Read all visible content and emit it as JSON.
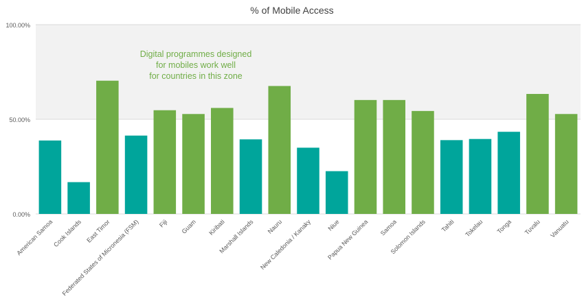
{
  "chart_data": {
    "type": "bar",
    "title": "% of Mobile Access",
    "xlabel": "",
    "ylabel": "",
    "ylim": [
      0,
      100
    ],
    "yticks": [
      0,
      50,
      100
    ],
    "ytick_labels": [
      "0.00%",
      "50.00%",
      "100.00%"
    ],
    "grid": true,
    "legend": "none",
    "categories": [
      "American Samoa",
      "Cook Islands",
      "East Timor",
      "Federated States of Micronesia (FSM)",
      "Fiji",
      "Guam",
      "Kiribati",
      "Marshall Islands",
      "Nauru",
      "New Caledonia / Kanaky",
      "Niue",
      "Papua New Guinea",
      "Samoa",
      "Solomon Islands",
      "Tahiti",
      "Tokelau",
      "Tonga",
      "Tuvalu",
      "Vanuatu"
    ],
    "values": [
      38.8,
      16.8,
      70.4,
      41.4,
      54.8,
      52.8,
      56.0,
      39.4,
      67.6,
      35.0,
      22.6,
      60.2,
      60.2,
      54.4,
      39.0,
      39.6,
      43.4,
      63.4,
      52.8
    ],
    "highlight": [
      false,
      false,
      true,
      false,
      true,
      true,
      true,
      false,
      true,
      false,
      false,
      true,
      true,
      true,
      false,
      false,
      false,
      true,
      true
    ],
    "zone": {
      "from": 50,
      "to": 100
    },
    "annotation_lines": [
      "Digital programmes designed",
      "for mobiles work well",
      "for countries in this zone"
    ],
    "colors": {
      "teal": "#00a59b",
      "green": "#70ad47",
      "zone": "#f2f2f2",
      "annotation": "#70ad47",
      "text": "#595959",
      "grid": "#d9d9d9"
    }
  }
}
